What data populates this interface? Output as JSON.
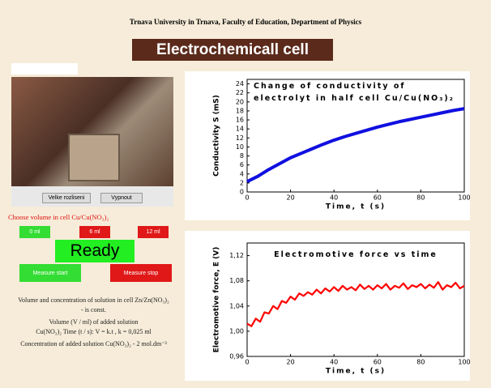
{
  "header": {
    "title": "Trnava University in Trnava, Faculty of Education, Department of Physics",
    "banner": "Electrochemicall cell"
  },
  "camera": {
    "buttons": [
      "Velke rozliseni",
      "Vypnout"
    ]
  },
  "controls": {
    "choose": "Choose volume in cell Cu/Cu(NO₃)₂",
    "volumes": [
      "0 ml",
      "6 ml",
      "12 ml"
    ],
    "status": "Ready",
    "start": "Measure start",
    "stop": "Measure stop"
  },
  "notes": [
    "Volume and concentration of solution in cell Zn/Zn(NO₃)₂",
    "- is const.",
    "Volume (V / ml) of added solution",
    "Cu(NO₃)₂ Time (t / s): V = k.t , k = 0,025 ml",
    "Concentration of added solution Cu(NO₃)₂ - 2 mol.dm⁻³"
  ],
  "chart_data": [
    {
      "type": "line",
      "title": "Change of conductivity of electrolyt in half cell Cu/Cu(NO₃)₂",
      "x_label": "Time, t (s)",
      "y_label": "Conductivity S (mS)",
      "x": [
        0,
        5,
        10,
        15,
        20,
        25,
        30,
        35,
        40,
        45,
        50,
        55,
        60,
        65,
        70,
        75,
        80,
        85,
        90,
        95,
        100
      ],
      "series": [
        {
          "color": "#1010e0",
          "values": [
            2.3,
            3.5,
            5.0,
            6.3,
            7.6,
            8.6,
            9.6,
            10.6,
            11.5,
            12.3,
            13.0,
            13.7,
            14.4,
            15.0,
            15.6,
            16.1,
            16.6,
            17.1,
            17.6,
            18.1,
            18.5
          ]
        }
      ],
      "xlim": [
        0,
        100
      ],
      "xticks": [
        0,
        20,
        40,
        60,
        80,
        100
      ],
      "ylim": [
        0,
        25
      ],
      "yticks": [
        0,
        2,
        4,
        6,
        8,
        10,
        12,
        14,
        16,
        18,
        20,
        22,
        24
      ]
    },
    {
      "type": "line",
      "title": "Electromotive force  vs time",
      "x_label": "Time, t (s)",
      "y_label": "Electromotive force, E (V)",
      "x": [
        0,
        2,
        4,
        6,
        8,
        10,
        12,
        14,
        16,
        18,
        20,
        22,
        24,
        26,
        28,
        30,
        32,
        34,
        36,
        38,
        40,
        42,
        44,
        46,
        48,
        50,
        52,
        54,
        56,
        58,
        60,
        62,
        64,
        66,
        68,
        70,
        72,
        74,
        76,
        78,
        80,
        82,
        84,
        86,
        88,
        90,
        92,
        94,
        96,
        98,
        100
      ],
      "series": [
        {
          "color": "#ff0000",
          "values": [
            1.012,
            1.008,
            1.02,
            1.015,
            1.03,
            1.028,
            1.04,
            1.035,
            1.048,
            1.045,
            1.055,
            1.05,
            1.06,
            1.056,
            1.062,
            1.058,
            1.066,
            1.06,
            1.068,
            1.063,
            1.07,
            1.064,
            1.072,
            1.066,
            1.07,
            1.065,
            1.074,
            1.067,
            1.072,
            1.066,
            1.073,
            1.068,
            1.075,
            1.066,
            1.072,
            1.069,
            1.076,
            1.067,
            1.073,
            1.07,
            1.075,
            1.068,
            1.074,
            1.069,
            1.078,
            1.066,
            1.073,
            1.07,
            1.077,
            1.068,
            1.072
          ]
        }
      ],
      "xlim": [
        0,
        100
      ],
      "xticks": [
        0,
        20,
        40,
        60,
        80,
        100
      ],
      "ylim": [
        0.96,
        1.14
      ],
      "yticks": [
        {
          "value": 0.96,
          "label": "0,96"
        },
        {
          "value": 1.0,
          "label": "1,00"
        },
        {
          "value": 1.04,
          "label": "1,04"
        },
        {
          "value": 1.08,
          "label": "1,08"
        },
        {
          "value": 1.12,
          "label": "1,12"
        }
      ]
    }
  ]
}
